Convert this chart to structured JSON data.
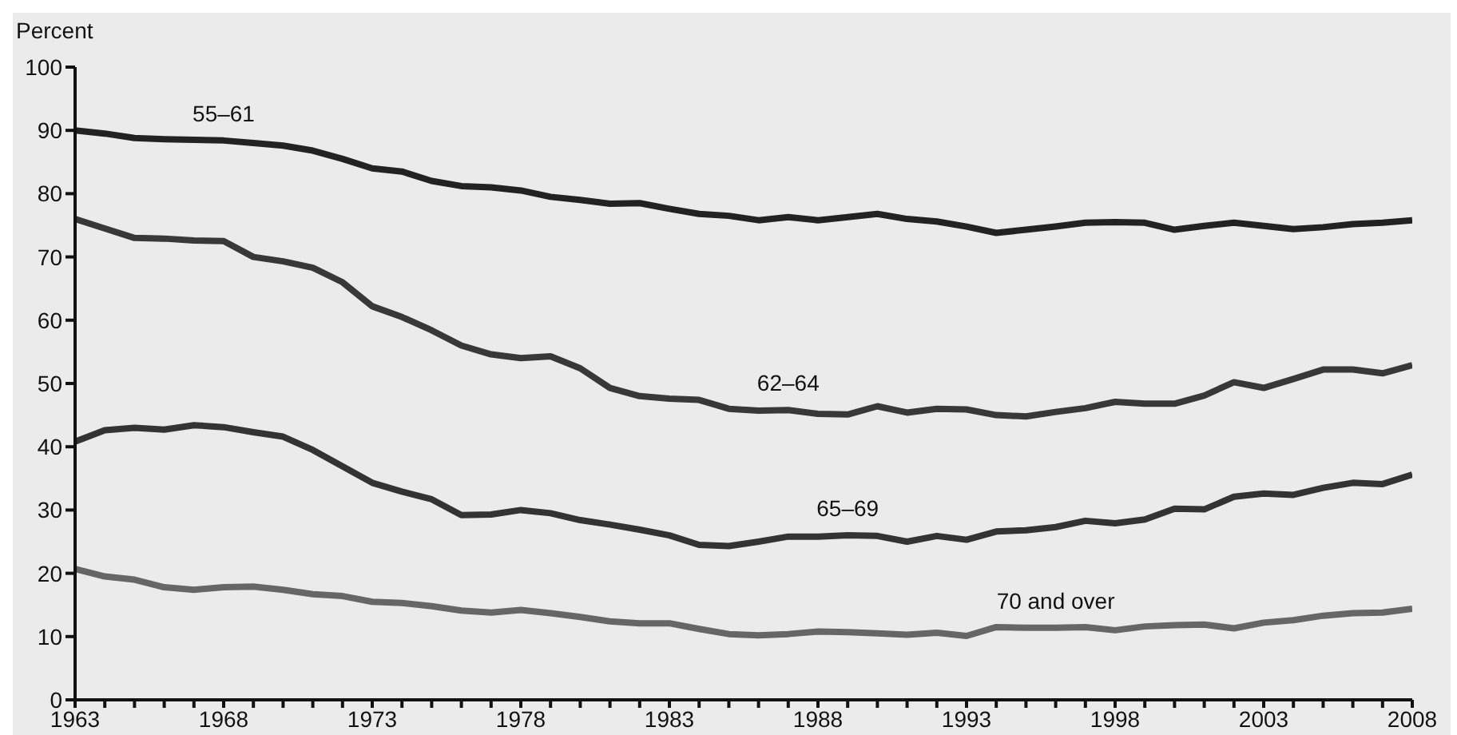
{
  "chart_data": {
    "type": "line",
    "ylabel": "Percent",
    "x": [
      1963,
      1964,
      1965,
      1966,
      1967,
      1968,
      1969,
      1970,
      1971,
      1972,
      1973,
      1974,
      1975,
      1976,
      1977,
      1978,
      1979,
      1980,
      1981,
      1982,
      1983,
      1984,
      1985,
      1986,
      1987,
      1988,
      1989,
      1990,
      1991,
      1992,
      1993,
      1994,
      1995,
      1996,
      1997,
      1998,
      1999,
      2000,
      2001,
      2002,
      2003,
      2004,
      2005,
      2006,
      2007,
      2008
    ],
    "series": [
      {
        "name": "55–61",
        "color": "#222222",
        "values": [
          90,
          89.5,
          88.8,
          88.6,
          88.5,
          88.4,
          88,
          87.6,
          86.8,
          85.5,
          84,
          83.5,
          82,
          81.2,
          81,
          80.5,
          79.5,
          79,
          78.4,
          78.5,
          77.6,
          76.8,
          76.5,
          75.8,
          76.3,
          75.8,
          76.3,
          76.8,
          76,
          75.6,
          74.8,
          73.8,
          74.3,
          74.8,
          75.4,
          75.5,
          75.4,
          74.3,
          74.9,
          75.4,
          74.9,
          74.4,
          74.7,
          75.2,
          75.4,
          75.8
        ]
      },
      {
        "name": "62–64",
        "color": "#383838",
        "values": [
          76,
          74.5,
          73,
          72.9,
          72.6,
          72.5,
          70,
          69.3,
          68.3,
          66,
          62.2,
          60.5,
          58.4,
          56,
          54.6,
          54,
          54.3,
          52.4,
          49.3,
          48,
          47.6,
          47.4,
          46,
          45.7,
          45.8,
          45.2,
          45.1,
          46.4,
          45.4,
          46,
          45.9,
          45,
          44.8,
          45.5,
          46.1,
          47.1,
          46.8,
          46.8,
          48.1,
          50.2,
          49.3,
          50.7,
          52.2,
          52.2,
          51.6,
          52.9
        ]
      },
      {
        "name": "65–69",
        "color": "#333333",
        "values": [
          40.8,
          42.6,
          43,
          42.7,
          43.4,
          43.1,
          42.3,
          41.6,
          39.5,
          36.9,
          34.3,
          32.9,
          31.7,
          29.2,
          29.3,
          30,
          29.5,
          28.4,
          27.7,
          26.9,
          26,
          24.5,
          24.3,
          25,
          25.8,
          25.8,
          26,
          25.9,
          25,
          25.9,
          25.3,
          26.6,
          26.8,
          27.3,
          28.3,
          27.9,
          28.5,
          30.2,
          30.1,
          32.1,
          32.6,
          32.4,
          33.5,
          34.3,
          34.1,
          35.6
        ]
      },
      {
        "name": "70 and over",
        "color": "#666666",
        "values": [
          20.7,
          19.5,
          19,
          17.8,
          17.4,
          17.8,
          17.9,
          17.4,
          16.7,
          16.4,
          15.5,
          15.3,
          14.8,
          14.1,
          13.8,
          14.2,
          13.7,
          13.1,
          12.4,
          12.1,
          12.1,
          11.2,
          10.4,
          10.2,
          10.4,
          10.8,
          10.7,
          10.5,
          10.3,
          10.6,
          10.1,
          11.5,
          11.4,
          11.4,
          11.5,
          11,
          11.6,
          11.8,
          11.9,
          11.3,
          12.2,
          12.6,
          13.3,
          13.7,
          13.8,
          14.4
        ]
      }
    ],
    "xlim": [
      1963,
      2008
    ],
    "xticks": [
      1963,
      {
        "value": 1964,
        "label": null
      },
      {
        "value": 1965,
        "label": null
      },
      {
        "value": 1966,
        "label": null
      },
      {
        "value": 1967,
        "label": null
      },
      1968,
      {
        "value": 1969,
        "label": null
      },
      {
        "value": 1970,
        "label": null
      },
      {
        "value": 1971,
        "label": null
      },
      {
        "value": 1972,
        "label": null
      },
      1973,
      {
        "value": 1974,
        "label": null
      },
      {
        "value": 1975,
        "label": null
      },
      {
        "value": 1976,
        "label": null
      },
      {
        "value": 1977,
        "label": null
      },
      1978,
      {
        "value": 1979,
        "label": null
      },
      {
        "value": 1980,
        "label": null
      },
      {
        "value": 1981,
        "label": null
      },
      {
        "value": 1982,
        "label": null
      },
      1983,
      {
        "value": 1984,
        "label": null
      },
      {
        "value": 1985,
        "label": null
      },
      {
        "value": 1986,
        "label": null
      },
      {
        "value": 1987,
        "label": null
      },
      1988,
      {
        "value": 1989,
        "label": null
      },
      {
        "value": 1990,
        "label": null
      },
      {
        "value": 1991,
        "label": null
      },
      {
        "value": 1992,
        "label": null
      },
      1993,
      {
        "value": 1994,
        "label": null
      },
      {
        "value": 1995,
        "label": null
      },
      {
        "value": 1996,
        "label": null
      },
      {
        "value": 1997,
        "label": null
      },
      1998,
      {
        "value": 1999,
        "label": null
      },
      {
        "value": 2000,
        "label": null
      },
      {
        "value": 2001,
        "label": null
      },
      {
        "value": 2002,
        "label": null
      },
      2003,
      {
        "value": 2004,
        "label": null
      },
      {
        "value": 2005,
        "label": null
      },
      {
        "value": 2006,
        "label": null
      },
      {
        "value": 2007,
        "label": null
      },
      2008
    ],
    "ylim": [
      0,
      100
    ],
    "yticks": [
      0,
      10,
      20,
      30,
      40,
      50,
      60,
      70,
      80,
      90,
      100
    ],
    "grid": false,
    "legend": false
  }
}
